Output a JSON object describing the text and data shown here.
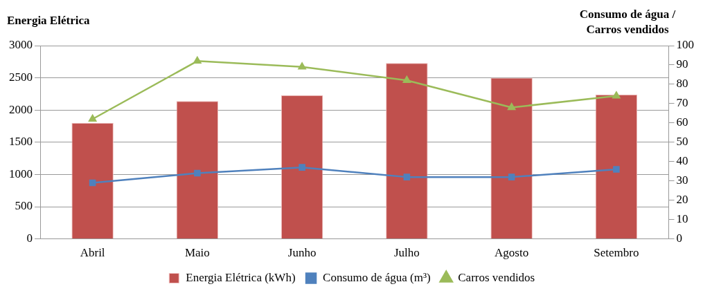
{
  "chart_data": {
    "type": "bar",
    "ylabel": "Energia Elétrica",
    "y2label": "Consumo de água / Carros vendidos",
    "categories": [
      "Abril",
      "Maio",
      "Junho",
      "Julho",
      "Agosto",
      "Setembro"
    ],
    "series": [
      {
        "name": "Energia Elétrica (kWh)",
        "color": "#c0504d",
        "values": [
          1800,
          2140,
          2230,
          2730,
          2500,
          2240
        ]
      },
      {
        "name": "Consumo de água (m³)",
        "type": "line",
        "axis": "y2",
        "color": "#4f81bd",
        "marker": "square",
        "values": [
          29,
          34,
          37,
          32,
          32,
          36
        ]
      },
      {
        "name": "Carros vendidos",
        "type": "line",
        "axis": "y2",
        "color": "#9bbb59",
        "marker": "triangle",
        "values": [
          62,
          92,
          89,
          82,
          68,
          74
        ]
      }
    ],
    "ylim": [
      0,
      3000
    ],
    "yticks": [
      0,
      500,
      1000,
      1500,
      2000,
      2500,
      3000
    ],
    "y2lim": [
      0,
      100
    ],
    "y2ticks": [
      0,
      10,
      20,
      30,
      40,
      50,
      60,
      70,
      80,
      90,
      100
    ],
    "grid": "y",
    "legend": "bottom"
  }
}
